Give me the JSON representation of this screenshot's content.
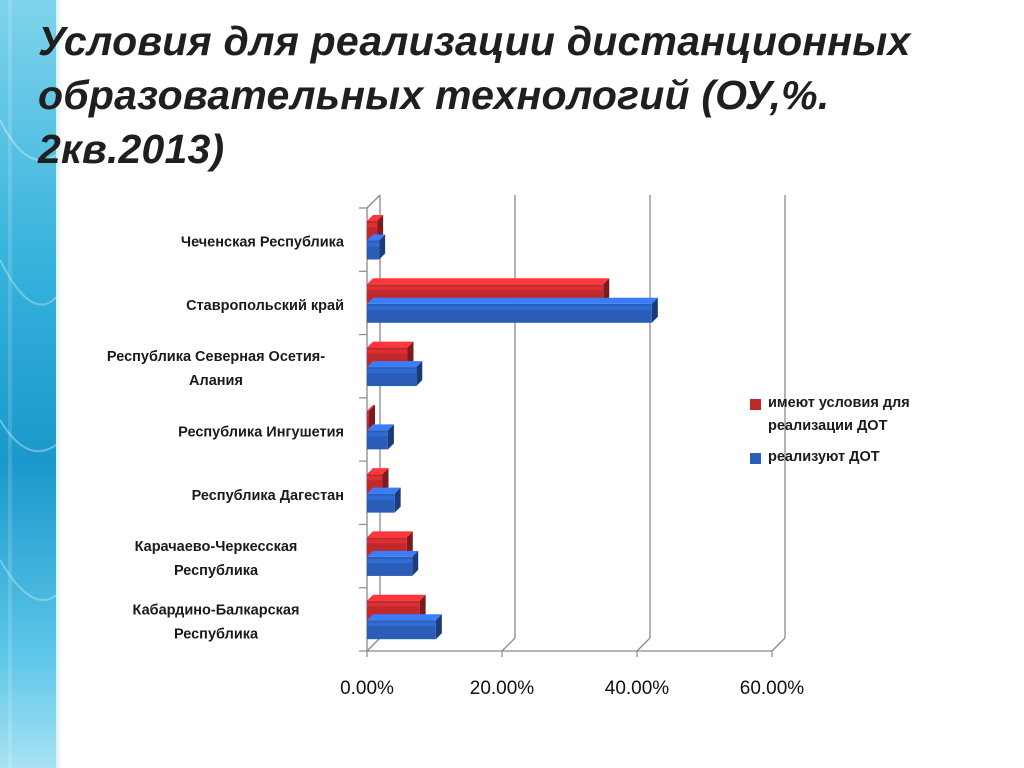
{
  "title": "Условия для реализации дистанционных образовательных технологий (ОУ,%. 2кв.2013)",
  "colors": {
    "series_red": "#c0282c",
    "series_blue": "#2a5db8"
  },
  "chart_data": {
    "type": "bar",
    "orientation": "horizontal",
    "style": "3d",
    "categories": [
      "Чеченская Республика",
      "Ставропольский край",
      "Республика Северная Осетия-Алания",
      "Республика Ингушетия",
      "Республика Дагестан",
      "Карачаево-Черкесская Республика",
      "Кабардино-Балкарская Республика"
    ],
    "category_lines": [
      [
        "Чеченская Республика"
      ],
      [
        "Ставропольский край"
      ],
      [
        "Республика Северная Осетия-",
        "Алания"
      ],
      [
        "Республика Ингушетия"
      ],
      [
        "Республика Дагестан"
      ],
      [
        "Карачаево-Черкесская",
        "Республика"
      ],
      [
        "Кабардино-Балкарская",
        "Республика"
      ]
    ],
    "series": [
      {
        "name": "имеют условия для реализации ДОТ",
        "name_lines": [
          "имеют условия для",
          "реализации ДОТ"
        ],
        "values": [
          1.5,
          35,
          6,
          0.3,
          2.3,
          5.9,
          7.8
        ]
      },
      {
        "name": "реализуют ДОТ",
        "name_lines": [
          "реализуют ДОТ"
        ],
        "values": [
          1.8,
          42.2,
          7.3,
          3.1,
          4.1,
          6.7,
          10.2
        ]
      }
    ],
    "x_ticks": [
      "0.00%",
      "20.00%",
      "40.00%",
      "60.00%"
    ],
    "xlim": [
      0,
      60
    ],
    "grid": true,
    "legend_position": "right"
  }
}
